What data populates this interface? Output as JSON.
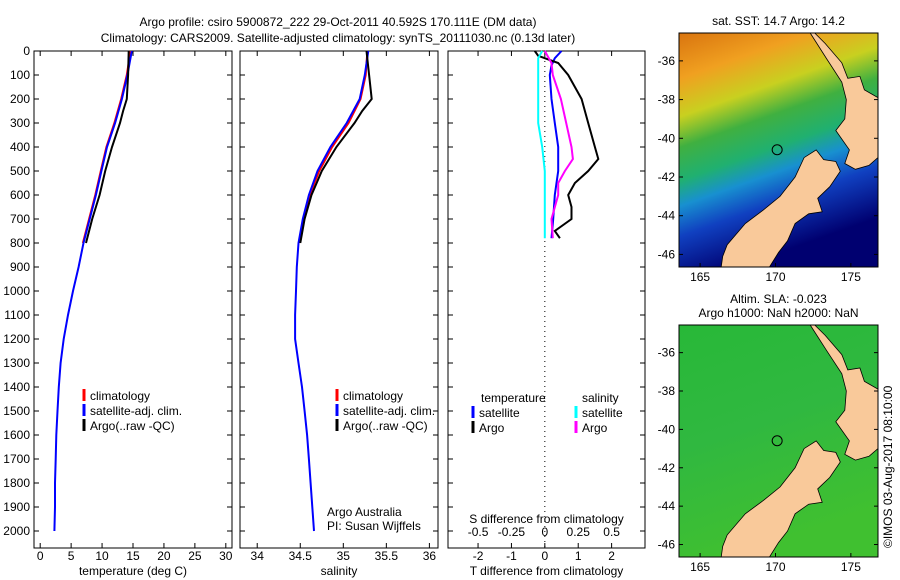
{
  "title": {
    "line1": "Argo profile: csiro 5900872_222 29-Oct-2011 40.592S 170.111E (DM data)",
    "line2": "Climatology: CARS2009. Satellite-adjusted climatology: synTS_20111030.nc (0.13d later)"
  },
  "colors": {
    "climatology": "#ff0000",
    "satellite": "#0000ff",
    "argo": "#000000",
    "sal_satellite": "#00ffff",
    "sal_argo": "#ff00ff",
    "land": "#f9c99a"
  },
  "chart_data": [
    {
      "type": "line",
      "id": "temperature",
      "xlabel": "temperature (deg C)",
      "ylabel": "depth",
      "xlim": [
        -1,
        31
      ],
      "ylim": [
        2000,
        0
      ],
      "xticks": [
        0,
        5,
        10,
        15,
        20,
        25,
        30
      ],
      "yticks": [
        0,
        100,
        200,
        300,
        400,
        500,
        600,
        700,
        800,
        900,
        1000,
        1100,
        1200,
        1300,
        1400,
        1500,
        1600,
        1700,
        1800,
        1900,
        2000
      ],
      "legend": [
        "climatology",
        "satellite-adj. clim.",
        "Argo(..raw -QC)"
      ],
      "series": [
        {
          "name": "climatology",
          "color": "#ff0000",
          "depth": [
            0,
            100,
            200,
            300,
            400,
            500,
            600,
            700,
            800
          ],
          "values": [
            14.6,
            14.0,
            13.1,
            12.0,
            10.7,
            9.8,
            8.9,
            7.9,
            6.9
          ]
        },
        {
          "name": "satellite-adj. clim.",
          "color": "#0000ff",
          "depth": [
            0,
            100,
            200,
            300,
            400,
            500,
            600,
            700,
            800,
            900,
            1000,
            1100,
            1200,
            1300,
            1400,
            1500,
            1600,
            1700,
            1800,
            1900,
            2000
          ],
          "values": [
            14.8,
            14.1,
            13.2,
            12.1,
            10.8,
            9.9,
            9.0,
            8.0,
            7.0,
            6.2,
            5.3,
            4.5,
            3.8,
            3.3,
            3.0,
            2.8,
            2.6,
            2.5,
            2.4,
            2.4,
            2.3
          ]
        },
        {
          "name": "Argo(..raw -QC)",
          "color": "#000000",
          "depth": [
            0,
            100,
            200,
            250,
            300,
            400,
            500,
            600,
            700,
            800
          ],
          "values": [
            14.3,
            14.2,
            14.0,
            13.4,
            12.9,
            11.6,
            10.5,
            9.6,
            8.4,
            7.4
          ]
        }
      ]
    },
    {
      "type": "line",
      "id": "salinity",
      "xlabel": "salinity",
      "xlim": [
        33.8,
        36.1
      ],
      "ylim": [
        2000,
        0
      ],
      "xticks": [
        34,
        34.5,
        35,
        35.5,
        36
      ],
      "legend": [
        "climatology",
        "satellite-adj. clim.",
        "Argo(..raw -QC)"
      ],
      "annotation": [
        "Argo Australia",
        "PI: Susan Wijffels"
      ],
      "series": [
        {
          "name": "climatology",
          "color": "#ff0000",
          "depth": [
            0,
            100,
            200,
            300,
            400,
            500,
            600,
            700,
            800
          ],
          "values": [
            35.28,
            35.26,
            35.2,
            35.06,
            34.87,
            34.72,
            34.61,
            34.54,
            34.49
          ]
        },
        {
          "name": "satellite-adj. clim.",
          "color": "#0000ff",
          "depth": [
            0,
            100,
            200,
            300,
            400,
            500,
            600,
            700,
            800,
            900,
            1000,
            1100,
            1200,
            1300,
            1400,
            1500,
            1600,
            1700,
            1800,
            1900,
            2000
          ],
          "values": [
            35.29,
            35.25,
            35.19,
            35.04,
            34.85,
            34.7,
            34.6,
            34.53,
            34.48,
            34.46,
            34.45,
            34.44,
            34.44,
            34.48,
            34.52,
            34.55,
            34.58,
            34.6,
            34.62,
            34.64,
            34.66
          ]
        },
        {
          "name": "Argo(..raw -QC)",
          "color": "#000000",
          "depth": [
            0,
            100,
            200,
            250,
            300,
            400,
            500,
            600,
            700,
            800
          ],
          "values": [
            35.27,
            35.3,
            35.33,
            35.22,
            35.13,
            34.92,
            34.75,
            34.63,
            34.55,
            34.5
          ]
        }
      ]
    },
    {
      "type": "line",
      "id": "difference",
      "xlabel": "T difference from climatology",
      "xlabel_top": "S difference from climatology",
      "xlim": [
        -2.9,
        3.0
      ],
      "ylim": [
        2000,
        0
      ],
      "xticks": [
        -2,
        -1,
        0,
        1,
        2
      ],
      "sticks": [
        "-0.5",
        "-0.25",
        "0",
        "0.25",
        "0.5"
      ],
      "legend_headers": [
        "temperature",
        "salinity"
      ],
      "legend": [
        "satellite",
        "Argo",
        "satellite",
        "Argo"
      ],
      "series": [
        {
          "name": "temperature satellite",
          "color": "#0000ff",
          "depth": [
            0,
            30,
            60,
            100,
            200,
            300,
            400,
            500,
            600,
            700,
            780
          ],
          "values": [
            0.5,
            0.3,
            0.2,
            0.15,
            0.2,
            0.3,
            0.4,
            0.4,
            0.3,
            0.25,
            0.2
          ]
        },
        {
          "name": "temperature Argo",
          "color": "#000000",
          "depth": [
            0,
            20,
            50,
            100,
            150,
            200,
            300,
            400,
            450,
            500,
            550,
            600,
            650,
            700,
            750,
            780
          ],
          "values": [
            -0.3,
            -0.2,
            0.4,
            0.7,
            0.9,
            1.1,
            1.3,
            1.5,
            1.6,
            1.3,
            0.9,
            0.7,
            0.8,
            0.8,
            0.3,
            0.45
          ]
        },
        {
          "name": "salinity satellite",
          "color": "#00ffff",
          "depth": [
            0,
            30,
            100,
            200,
            300,
            400,
            500,
            600,
            700,
            780
          ],
          "values": [
            -0.02,
            -0.05,
            -0.05,
            -0.05,
            -0.05,
            -0.02,
            0.0,
            0.0,
            0.0,
            0.0
          ]
        },
        {
          "name": "salinity Argo",
          "color": "#ff00ff",
          "depth": [
            0,
            50,
            100,
            200,
            300,
            400,
            450,
            500,
            550,
            600,
            700,
            780
          ],
          "values": [
            0.0,
            0.05,
            0.06,
            0.12,
            0.16,
            0.2,
            0.21,
            0.15,
            0.1,
            0.1,
            0.05,
            0.06
          ]
        }
      ]
    }
  ],
  "maps": [
    {
      "title": [
        "sat. SST: 14.7 Argo: 14.2"
      ],
      "kind": "sst",
      "lon_ticks": [
        165,
        170,
        175
      ],
      "lat_ticks": [
        -36,
        -38,
        -40,
        -42,
        -44,
        -46
      ]
    },
    {
      "title": [
        "Altim. SLA: -0.023",
        "Argo h1000: NaN h2000: NaN"
      ],
      "kind": "sla",
      "lon_ticks": [
        165,
        170,
        175
      ],
      "lat_ticks": [
        -36,
        -38,
        -40,
        -42,
        -44,
        -46
      ]
    }
  ],
  "float_position": {
    "lon": 170.111,
    "lat": -40.592
  },
  "credit": "©IMOS 03-Aug-2017 08:10:00"
}
